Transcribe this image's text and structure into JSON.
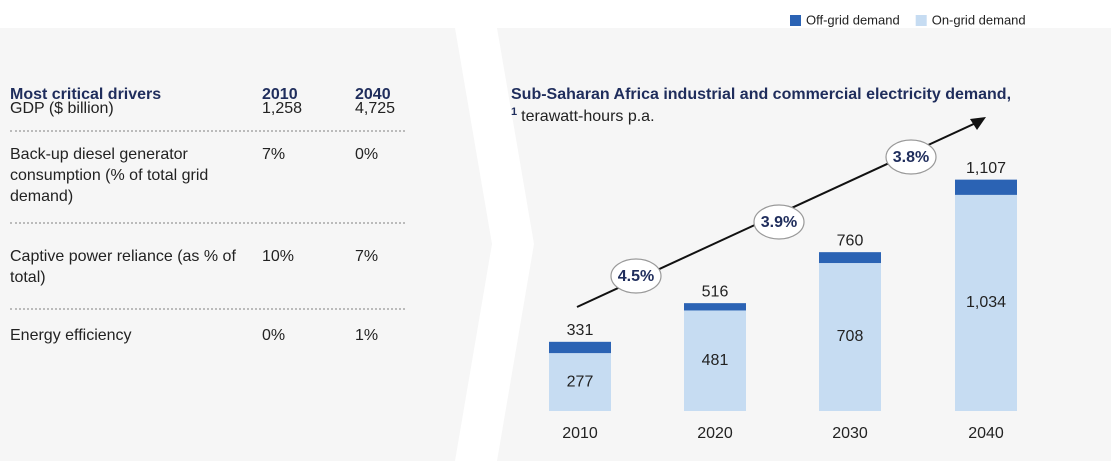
{
  "table": {
    "header": [
      "Most critical drivers",
      "2010",
      "2040"
    ],
    "rows": [
      [
        "GDP ($ billion)",
        "1,258",
        "4,725"
      ],
      [
        "Back-up diesel generator consumption (% of total grid demand)",
        "7%",
        "0%"
      ],
      [
        "Captive power reliance (as % of total)",
        "10%",
        "7%"
      ],
      [
        "Energy efficiency",
        "0%",
        "1%"
      ]
    ]
  },
  "chart_data": {
    "type": "stacked-bar",
    "title": "Sub-Saharan Africa industrial and commercial electricity demand,",
    "title_footnote": "1",
    "unit": "terawatt-hours p.a.",
    "categories": [
      "2010",
      "2020",
      "2030",
      "2040"
    ],
    "series": [
      {
        "name": "Off-grid demand",
        "color": "#2b63b4",
        "values": [
          54,
          35,
          52,
          73
        ]
      },
      {
        "name": "On-grid demand",
        "color": "#c6dcf2",
        "values": [
          277,
          481,
          708,
          1034
        ],
        "value_labels": [
          "277",
          "481",
          "708",
          "1,034"
        ]
      }
    ],
    "total_labels": [
      "331",
      "516",
      "760",
      "1,107"
    ],
    "annotations": [
      "4.5%",
      "3.9%",
      "3.8%"
    ]
  }
}
